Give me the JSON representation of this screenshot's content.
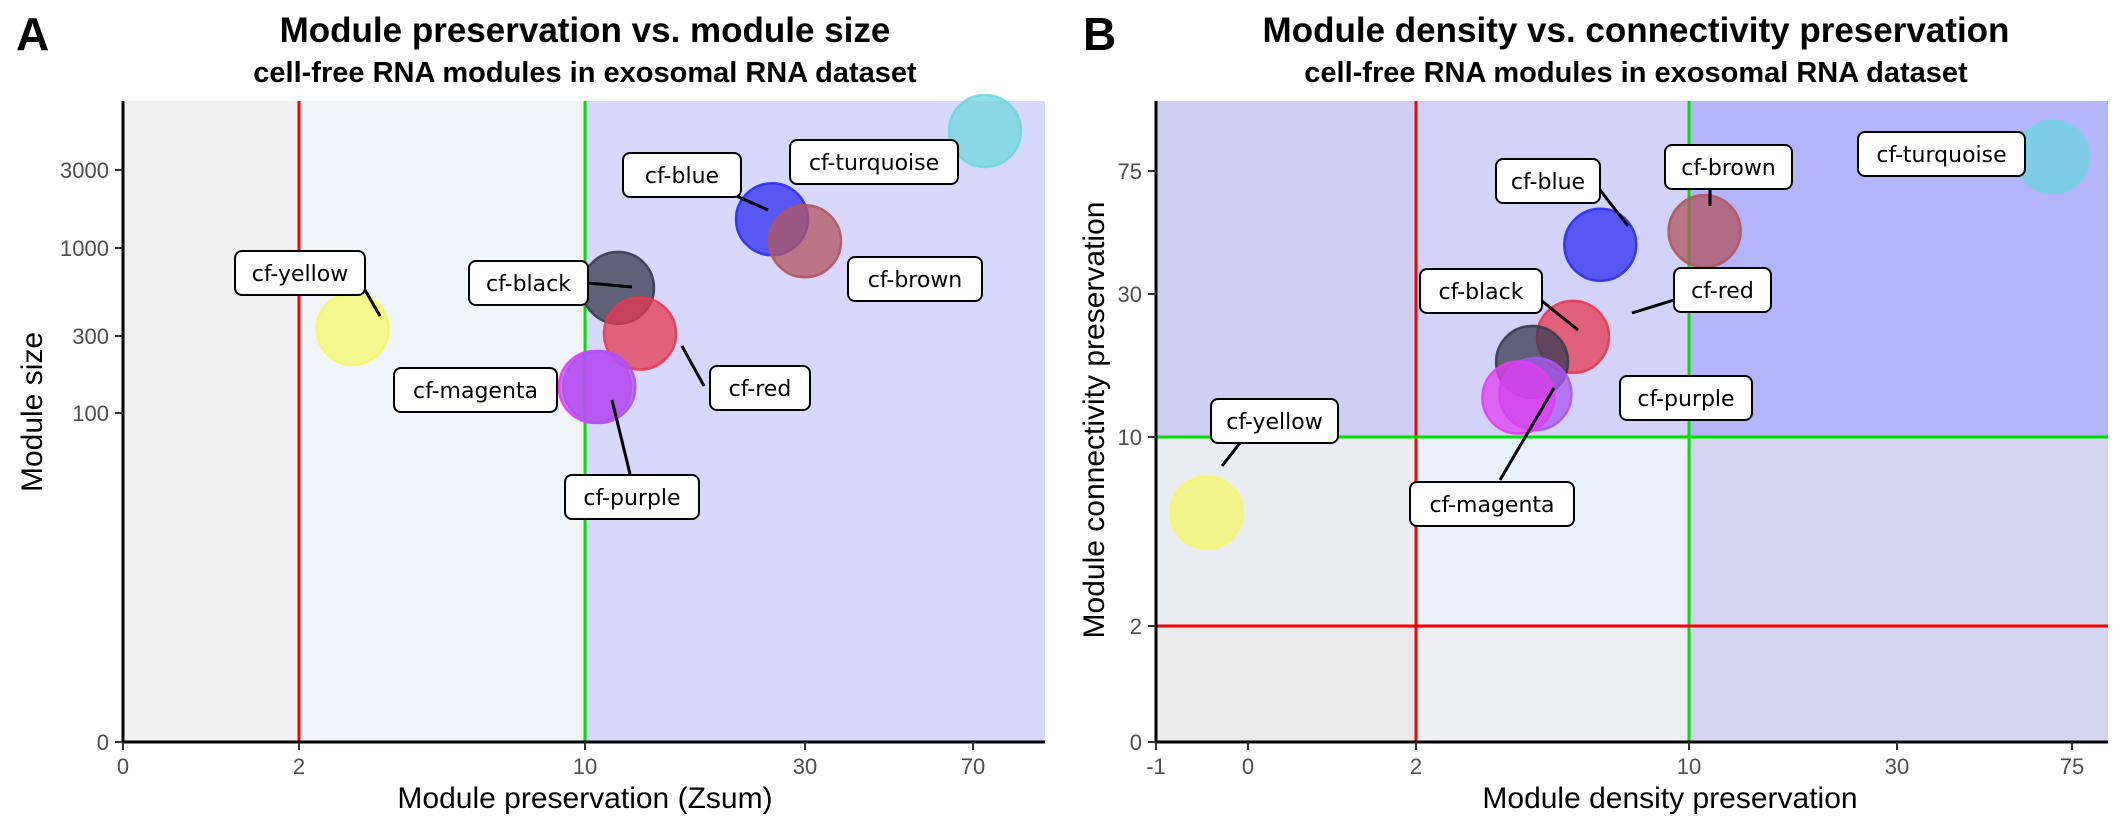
{
  "panels": [
    {
      "letter": "A",
      "title": "Module preservation vs. module size",
      "subtitle": "cell-free RNA modules in exosomal RNA dataset"
    },
    {
      "letter": "B",
      "title": "Module density vs. connectivity preservation",
      "subtitle": "cell-free RNA modules in exosomal RNA dataset"
    }
  ],
  "chart_data": [
    {
      "type": "scatter",
      "title": "Module preservation vs. module size",
      "subtitle": "cell-free RNA modules in exosomal RNA dataset",
      "xlabel": "Module preservation (Zsum)",
      "ylabel": "Module size",
      "x_scale": "sqrt-like",
      "y_scale": "log",
      "x_ticks": [
        "0",
        "2",
        "10",
        "30",
        "70"
      ],
      "y_ticks": [
        "0",
        "100",
        "300",
        "1000",
        "3000"
      ],
      "xlim": [
        0,
        100
      ],
      "ylim": [
        0,
        7000
      ],
      "threshold_lines": [
        {
          "axis": "x",
          "value": 2,
          "color": "#ff0000"
        },
        {
          "axis": "x",
          "value": 10,
          "color": "#00e000"
        }
      ],
      "background_zones": [
        {
          "from": 0,
          "to": 2,
          "color": "#f0f0f0"
        },
        {
          "from": 2,
          "to": 10,
          "color": "#f0f5fb"
        },
        {
          "from": 10,
          "to": 100,
          "color": "#d8d8fc"
        }
      ],
      "grid": false,
      "legend": "none",
      "points": [
        {
          "label": "cf-turquoise",
          "x": 75,
          "y": 5200,
          "color": "#6fd6e0"
        },
        {
          "label": "cf-blue",
          "x": 27,
          "y": 1500,
          "color": "#2d2df0"
        },
        {
          "label": "cf-brown",
          "x": 30,
          "y": 1100,
          "color": "#b05560"
        },
        {
          "label": "cf-black",
          "x": 13,
          "y": 580,
          "color": "#3a3a52"
        },
        {
          "label": "cf-yellow",
          "x": 3.5,
          "y": 330,
          "color": "#f6f66a"
        },
        {
          "label": "cf-red",
          "x": 15,
          "y": 310,
          "color": "#e63a50"
        },
        {
          "label": "cf-magenta",
          "x": 10.9,
          "y": 145,
          "color": "#e13ef0"
        },
        {
          "label": "cf-purple",
          "x": 11.3,
          "y": 145,
          "color": "#aa55f2"
        }
      ]
    },
    {
      "type": "scatter",
      "title": "Module density vs. connectivity preservation",
      "subtitle": "cell-free RNA modules in exosomal RNA dataset",
      "xlabel": "Module density preservation",
      "ylabel": "Module connectivity preservation",
      "x_scale": "sqrt-like",
      "y_scale": "sqrt-like",
      "x_ticks": [
        "-1",
        "0",
        "2",
        "10",
        "30",
        "75"
      ],
      "y_ticks": [
        "0",
        "2",
        "10",
        "30",
        "75"
      ],
      "xlim": [
        -1,
        80
      ],
      "ylim": [
        0,
        100
      ],
      "threshold_lines": [
        {
          "axis": "x",
          "value": 2,
          "color": "#ff0000"
        },
        {
          "axis": "x",
          "value": 10,
          "color": "#00e000"
        },
        {
          "axis": "y",
          "value": 2,
          "color": "#ff0000"
        },
        {
          "axis": "y",
          "value": 10,
          "color": "#00e000"
        }
      ],
      "background_zones": [
        {
          "x": [
            -1,
            2
          ],
          "y": [
            0,
            2
          ],
          "color": "#eaeaea"
        },
        {
          "x": [
            2,
            10
          ],
          "y": [
            0,
            2
          ],
          "color": "#eeeff5"
        },
        {
          "x": [
            10,
            80
          ],
          "y": [
            0,
            2
          ],
          "color": "#d6d6f2"
        },
        {
          "x": [
            -1,
            2
          ],
          "y": [
            2,
            10
          ],
          "color": "#e9edf1"
        },
        {
          "x": [
            2,
            10
          ],
          "y": [
            2,
            10
          ],
          "color": "#eaf2fb"
        },
        {
          "x": [
            10,
            80
          ],
          "y": [
            2,
            10
          ],
          "color": "#d6d6f2"
        },
        {
          "x": [
            -1,
            2
          ],
          "y": [
            10,
            100
          ],
          "color": "#cfcff3"
        },
        {
          "x": [
            2,
            10
          ],
          "y": [
            10,
            100
          ],
          "color": "#d2d2fa"
        },
        {
          "x": [
            10,
            80
          ],
          "y": [
            10,
            100
          ],
          "color": "#b4b4fa"
        }
      ],
      "grid": false,
      "legend": "none",
      "points": [
        {
          "label": "cf-turquoise",
          "x": 70,
          "y": 80,
          "color": "#6fd6e0"
        },
        {
          "label": "cf-blue",
          "x": 7.4,
          "y": 48,
          "color": "#2d2df0"
        },
        {
          "label": "cf-brown",
          "x": 11.5,
          "y": 53,
          "color": "#b05560"
        },
        {
          "label": "cf-red",
          "x": 6.6,
          "y": 24,
          "color": "#e63a50"
        },
        {
          "label": "cf-black",
          "x": 5.4,
          "y": 20.5,
          "color": "#3a3a52"
        },
        {
          "label": "cf-purple",
          "x": 5.5,
          "y": 16,
          "color": "#aa55f2"
        },
        {
          "label": "cf-magenta",
          "x": 5.0,
          "y": 15.5,
          "color": "#e13ef0"
        },
        {
          "label": "cf-yellow",
          "x": -0.45,
          "y": 6.8,
          "color": "#f6f66a"
        }
      ]
    }
  ]
}
